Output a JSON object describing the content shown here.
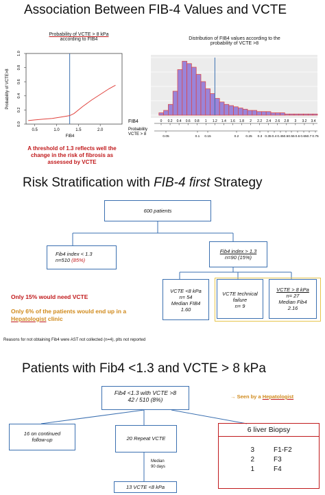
{
  "section1": {
    "title": "Association Between FIB-4 Values and VCTE",
    "left_chart": {
      "title_line1": "Probability of VCTE > 8 kPa",
      "title_line2": "according to FIB4",
      "ylabel": "Probability of VCTE>8",
      "xlabel": "FIB4",
      "yticks": [
        "0.0",
        "0.2",
        "0.4",
        "0.6",
        "0.8",
        "1.0"
      ],
      "xticks": [
        "0.5",
        "1.0",
        "1.5",
        "2.0"
      ]
    },
    "right_chart": {
      "title_line1": "Distribution of FIB4 values according to the",
      "title_line2": "probability of VCTE >8",
      "row1_label": "FIB4",
      "row2_label_line1": "Probability",
      "row2_label_line2": "VCTE > 8",
      "fib4_ticks": [
        "0",
        "0.2",
        "0.4",
        "0.6",
        "0.8",
        "1",
        "1.2",
        "1.4",
        "1.6",
        "1.8",
        "2",
        "2.2",
        "2.4",
        "2.6",
        "2.8",
        "3",
        "3.2",
        "3.4"
      ],
      "prob_ticks": [
        "0.05",
        "0.1",
        "0.15",
        "0.2",
        "0.25",
        "0.3",
        "0.35",
        "0.4",
        "0.45",
        "0.5",
        "0.55",
        "0.6",
        "0.65",
        "0.7",
        "0.75"
      ]
    },
    "note_line1": "A threshold of 1.3 reflects well the",
    "note_line2": "change in the risk of fibrosis as",
    "note_line3": "assessed by VCTE"
  },
  "section2": {
    "title_prefix": "Risk Stratification with ",
    "title_italic": "FIB-4 first",
    "title_suffix": " Strategy",
    "root": "600 patients",
    "low_line1": "Fib4 index < 1.3",
    "low_line2_prefix": "n=510 ",
    "low_line2_pct": "(85%)",
    "high_line1": "Fib4 index > 1.3",
    "high_line2": "n=90 (15%)",
    "vcte_low_line1": "VCTE <8 kPa",
    "vcte_low_line2": "n= 54",
    "vcte_low_line3": "Median FIB4",
    "vcte_low_line4": "1.60",
    "tech_line1": "VCTE technical",
    "tech_line2": "failure",
    "tech_line3": "n= 9",
    "vcte_high_line1": "VCTE > 8 kPa",
    "vcte_high_line2": "n= 27",
    "vcte_high_line3": "Median Fib4",
    "vcte_high_line4": "2.16",
    "only15": "Only 15% would need VCTE",
    "only6_line1": "Only 6% of the patients would end up in a",
    "only6_hep": "Hepatologist",
    "only6_clinic": " clinic",
    "reasons": "Reasons for not obtaining Fib4 were AST not collected (n=4), plts not reported"
  },
  "section3": {
    "title": "Patients with Fib4 <1.3 and VCTE > 8 kPa",
    "root_line1": "Fib4 <1.3 with VCTE >8",
    "root_line2": "42 / 510 (8%)",
    "seen_arrow": "→",
    "seen_text": "Seen by a ",
    "seen_hep": "Hepatologist",
    "followup_line1": "16 on continued",
    "followup_line2": "follow-up",
    "repeat": "20 Repeat VCTE",
    "median_line1": "Median",
    "median_line2": "90 days",
    "result": "13 VCTE <8 kPa",
    "biopsy_title": "6 liver Biopsy",
    "biopsy_rows": [
      {
        "n": "3",
        "stage": "F1-F2"
      },
      {
        "n": "2",
        "stage": "F3"
      },
      {
        "n": "1",
        "stage": "F4"
      }
    ]
  },
  "colors": {
    "accent_blue": "#3a6fb0",
    "red": "#c0181a",
    "orange": "#d08a1c",
    "yellow_border": "#e6c44a",
    "hist_fill": "#9b84d8",
    "hist_edge": "#e0413c"
  },
  "chart_data": [
    {
      "type": "line",
      "title": "Probability of VCTE > 8 kPa according to FIB4",
      "xlabel": "FIB4",
      "ylabel": "Probability of VCTE>8",
      "xlim": [
        0.3,
        2.5
      ],
      "ylim": [
        0,
        1
      ],
      "threshold_x": 1.3,
      "x": [
        0.35,
        0.5,
        0.7,
        0.9,
        1.1,
        1.3,
        1.4,
        1.6,
        1.8,
        2.0,
        2.2,
        2.35
      ],
      "values": [
        0.05,
        0.06,
        0.07,
        0.08,
        0.1,
        0.12,
        0.15,
        0.25,
        0.34,
        0.42,
        0.5,
        0.55
      ]
    },
    {
      "type": "bar",
      "title": "Distribution of FIB4 values according to the probability of VCTE >8",
      "xlabel": "FIB4",
      "xlim": [
        0,
        3.5
      ],
      "bin_width": 0.1,
      "threshold_x": 1.3,
      "x": [
        0.1,
        0.2,
        0.3,
        0.4,
        0.5,
        0.6,
        0.7,
        0.8,
        0.9,
        1.0,
        1.1,
        1.2,
        1.3,
        1.4,
        1.5,
        1.6,
        1.7,
        1.8,
        1.9,
        2.0,
        2.1,
        2.2,
        2.3,
        2.4,
        2.5,
        2.6,
        2.7,
        2.8,
        2.9,
        3.0,
        3.1,
        3.2,
        3.3,
        3.4
      ],
      "values": [
        2,
        4,
        9,
        20,
        38,
        45,
        43,
        40,
        34,
        28,
        22,
        18,
        14,
        11,
        9,
        8,
        7,
        6,
        5,
        4,
        4,
        3,
        3,
        3,
        2,
        2,
        2,
        1,
        1,
        1,
        1,
        1,
        1,
        1
      ]
    }
  ]
}
